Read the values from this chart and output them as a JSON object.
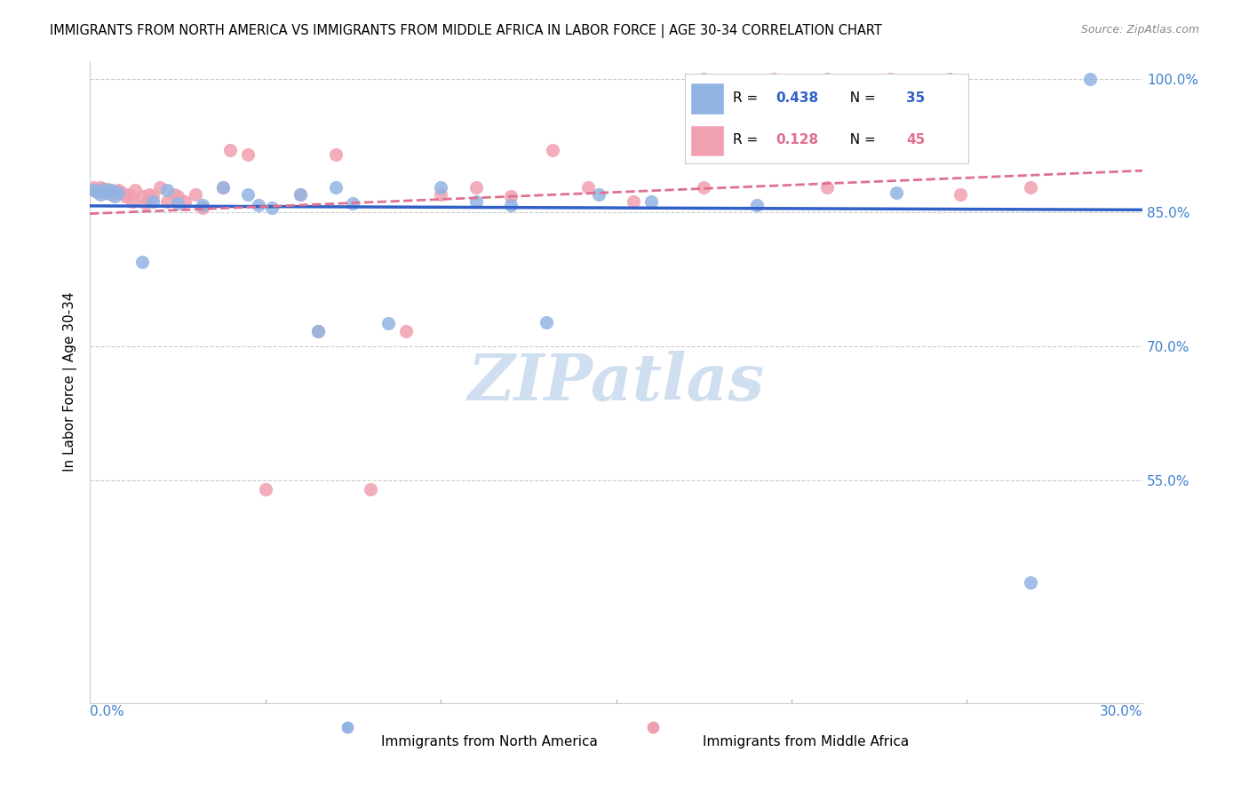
{
  "title": "IMMIGRANTS FROM NORTH AMERICA VS IMMIGRANTS FROM MIDDLE AFRICA IN LABOR FORCE | AGE 30-34 CORRELATION CHART",
  "source": "Source: ZipAtlas.com",
  "ylabel": "In Labor Force | Age 30-34",
  "blue_R": 0.438,
  "blue_N": 35,
  "pink_R": 0.128,
  "pink_N": 45,
  "blue_color": "#92b4e3",
  "pink_color": "#f0a0b0",
  "blue_line_color": "#3060c8",
  "pink_line_color": "#e07090",
  "background_color": "#ffffff",
  "grid_color": "#cccccc",
  "axis_color": "#4080d0",
  "legend_border_color": "#dddddd",
  "watermark_color": "#d0dff0",
  "xlim": [
    0.0,
    0.3
  ],
  "ylim": [
    0.3,
    1.02
  ],
  "ytick_vals": [
    1.0,
    0.85,
    0.7,
    0.55
  ],
  "ytick_labels": [
    "100.0%",
    "85.0%",
    "70.0%",
    "55.0%"
  ],
  "blue_x": [
    0.001,
    0.002,
    0.003,
    0.004,
    0.005,
    0.006,
    0.007,
    0.008,
    0.015,
    0.018,
    0.022,
    0.025,
    0.032,
    0.038,
    0.045,
    0.048,
    0.052,
    0.06,
    0.065,
    0.07,
    0.075,
    0.085,
    0.1,
    0.11,
    0.12,
    0.13,
    0.145,
    0.16,
    0.175,
    0.19,
    0.21,
    0.23,
    0.245,
    0.268,
    0.285
  ],
  "blue_y": [
    0.875,
    0.873,
    0.87,
    0.876,
    0.872,
    0.875,
    0.868,
    0.872,
    0.795,
    0.862,
    0.875,
    0.86,
    0.858,
    0.878,
    0.87,
    0.858,
    0.855,
    0.87,
    0.717,
    0.878,
    0.86,
    0.726,
    0.878,
    0.862,
    0.858,
    0.727,
    0.87,
    0.862,
    1.0,
    0.858,
    1.0,
    0.872,
    1.0,
    0.435,
    1.0
  ],
  "pink_x": [
    0.001,
    0.002,
    0.003,
    0.004,
    0.005,
    0.006,
    0.007,
    0.008,
    0.009,
    0.01,
    0.011,
    0.012,
    0.013,
    0.015,
    0.016,
    0.017,
    0.018,
    0.02,
    0.022,
    0.024,
    0.025,
    0.027,
    0.03,
    0.032,
    0.038,
    0.04,
    0.045,
    0.05,
    0.06,
    0.065,
    0.07,
    0.08,
    0.09,
    0.1,
    0.11,
    0.12,
    0.132,
    0.142,
    0.155,
    0.175,
    0.195,
    0.21,
    0.228,
    0.248,
    0.268
  ],
  "pink_y": [
    0.878,
    0.875,
    0.878,
    0.872,
    0.876,
    0.87,
    0.873,
    0.875,
    0.872,
    0.868,
    0.87,
    0.862,
    0.875,
    0.868,
    0.86,
    0.87,
    0.868,
    0.878,
    0.862,
    0.87,
    0.868,
    0.862,
    0.87,
    0.855,
    0.878,
    0.92,
    0.915,
    0.54,
    0.87,
    0.717,
    0.915,
    0.54,
    0.717,
    0.87,
    0.878,
    0.868,
    0.92,
    0.878,
    0.862,
    0.878,
    1.0,
    0.878,
    1.0,
    0.87,
    0.878
  ]
}
